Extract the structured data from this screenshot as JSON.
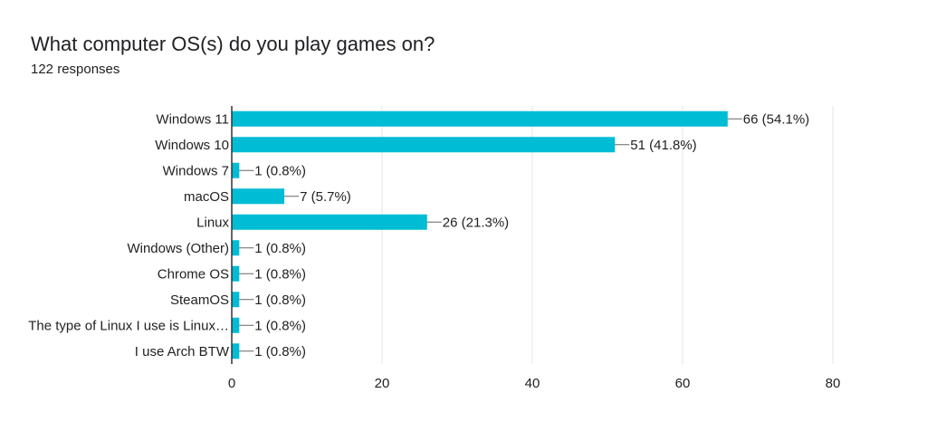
{
  "header": {
    "title": "What computer OS(s) do you play games on?",
    "subtitle": "122 responses"
  },
  "colors": {
    "bar": "#00bcd4",
    "axis": "#333333",
    "grid": "#e6e6e6",
    "leader": "#666666"
  },
  "chart_data": {
    "type": "bar",
    "orientation": "horizontal",
    "title": "What computer OS(s) do you play games on?",
    "subtitle": "122 responses",
    "categories": [
      "Windows 11",
      "Windows 10",
      "Windows 7",
      "macOS",
      "Linux",
      "Windows (Other)",
      "Chrome OS",
      "SteamOS",
      "The type of Linux I use is Linux…",
      "I use Arch BTW"
    ],
    "values": [
      66,
      51,
      1,
      7,
      26,
      1,
      1,
      1,
      1,
      1
    ],
    "data_labels": [
      "66 (54.1%)",
      "51 (41.8%)",
      "1 (0.8%)",
      "7 (5.7%)",
      "26 (21.3%)",
      "1 (0.8%)",
      "1 (0.8%)",
      "1 (0.8%)",
      "1 (0.8%)",
      "1 (0.8%)"
    ],
    "xlim": [
      0,
      80
    ],
    "xticks": [
      0,
      20,
      40,
      60,
      80
    ],
    "grid": true,
    "legend": "none"
  }
}
